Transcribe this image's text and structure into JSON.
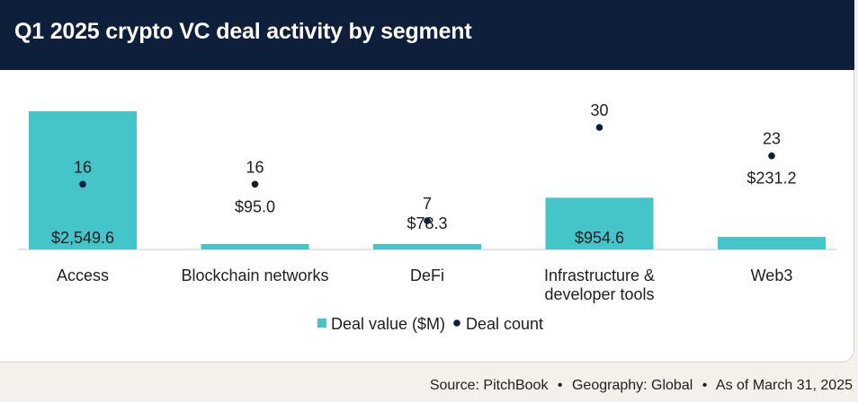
{
  "header": {
    "title": "Q1 2025 crypto VC deal activity by segment"
  },
  "chart_data": {
    "type": "bar",
    "title": "Q1 2025 crypto VC deal activity by segment",
    "categories": [
      "Access",
      "Blockchain networks",
      "DeFi",
      "Infrastructure & developer tools",
      "Web3"
    ],
    "category_lines": [
      [
        "Access"
      ],
      [
        "Blockchain networks"
      ],
      [
        "DeFi"
      ],
      [
        "Infrastructure &",
        "developer tools"
      ],
      [
        "Web3"
      ]
    ],
    "series": [
      {
        "name": "Deal value ($M)",
        "kind": "bar",
        "values": [
          2549.6,
          95.0,
          78.3,
          954.6,
          231.2
        ],
        "labels": [
          "$2,549.6",
          "$95.0",
          "$78.3",
          "$954.6",
          "$231.2"
        ]
      },
      {
        "name": "Deal count",
        "kind": "dot",
        "values": [
          16,
          16,
          7,
          30,
          23
        ]
      }
    ],
    "legend": [
      "Deal value ($M)",
      "Deal count"
    ],
    "legend_position": "bottom",
    "colors": {
      "bar": "#45c4c9",
      "dot": "#0d1f3a",
      "text": "#1e1e1e",
      "axis": "#c9c9c9"
    }
  },
  "footer": {
    "source": "Source: PitchBook",
    "geography": "Geography: Global",
    "date": "As of March 31, 2025",
    "separator": "•"
  }
}
